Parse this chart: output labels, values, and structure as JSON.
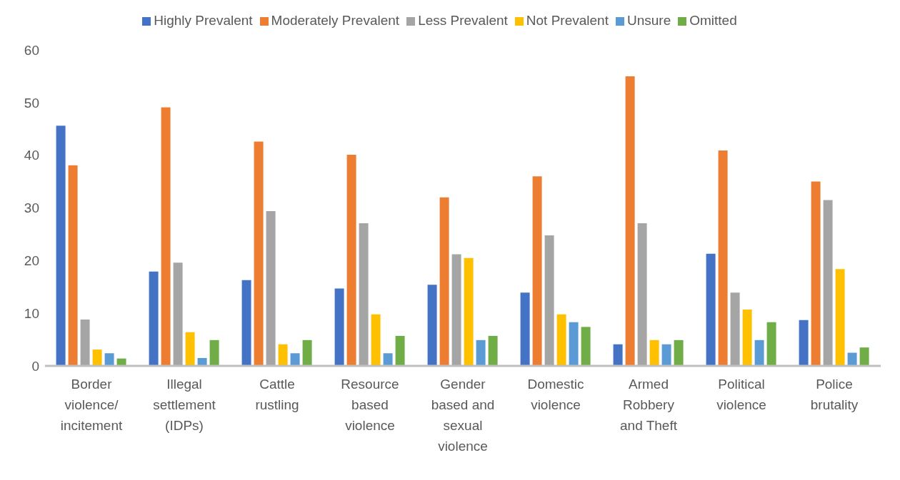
{
  "chart_data": {
    "type": "bar",
    "categories": [
      "Border violence/ incitement",
      "Illegal settlement (IDPs)",
      "Cattle rustling",
      "Resource based violence",
      "Gender based and sexual violence",
      "Domestic violence",
      "Armed Robbery and Theft",
      "Political violence",
      "Police brutality"
    ],
    "series": [
      {
        "name": "Highly Prevalent",
        "color": "#4472c4",
        "values": [
          45.6,
          17.9,
          16.3,
          14.7,
          15.4,
          13.9,
          4.1,
          21.3,
          8.7
        ]
      },
      {
        "name": "Moderately Prevalent",
        "color": "#ed7d31",
        "values": [
          38.1,
          49.1,
          42.6,
          40.1,
          32.0,
          36.0,
          55.0,
          40.9,
          35.0
        ]
      },
      {
        "name": "Less Prevalent",
        "color": "#a5a5a5",
        "values": [
          8.8,
          19.6,
          29.4,
          27.1,
          21.2,
          24.8,
          27.1,
          13.9,
          31.5
        ]
      },
      {
        "name": "Not Prevalent",
        "color": "#ffc000",
        "values": [
          3.1,
          6.4,
          4.1,
          9.8,
          20.5,
          9.8,
          4.9,
          10.7,
          18.4
        ]
      },
      {
        "name": "Unsure",
        "color": "#5b9bd5",
        "values": [
          2.4,
          1.5,
          2.4,
          2.4,
          4.9,
          8.3,
          4.1,
          4.9,
          2.5
        ]
      },
      {
        "name": "Omitted",
        "color": "#70ad47",
        "values": [
          1.4,
          4.9,
          4.9,
          5.7,
          5.7,
          7.4,
          4.9,
          8.3,
          3.5
        ]
      }
    ],
    "ylim": [
      0,
      60
    ],
    "yticks": [
      0,
      10,
      20,
      30,
      40,
      50,
      60
    ],
    "grid": false,
    "legend": "top"
  }
}
